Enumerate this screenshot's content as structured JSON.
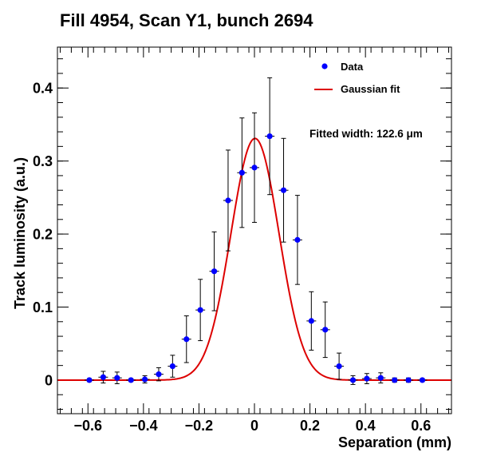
{
  "chart_data": {
    "type": "scatter",
    "title": "Fill 4954, Scan Y1, bunch 2694",
    "xlabel": "Separation (mm)",
    "ylabel": "Track luminosity (a.u.)",
    "xlim": [
      -0.71,
      0.71
    ],
    "ylim": [
      -0.046,
      0.456
    ],
    "x_ticks": [
      -0.6,
      -0.4,
      -0.2,
      0,
      0.2,
      0.4,
      0.6
    ],
    "x_tick_labels": [
      "−0.6",
      "−0.4",
      "−0.2",
      "0",
      "0.2",
      "0.4",
      "0.6"
    ],
    "y_ticks": [
      0,
      0.1,
      0.2,
      0.3,
      0.4
    ],
    "y_tick_labels": [
      "0",
      "0.1",
      "0.2",
      "0.3",
      "0.4"
    ],
    "legend_position": "top-right",
    "legend": {
      "data_label": "Data",
      "fit_label": "Gaussian fit"
    },
    "annotation": "Fitted width: 122.6 μm",
    "colors": {
      "data": "#0000ff",
      "fit": "#dd0000",
      "error_bar": "#000000"
    },
    "series": [
      {
        "name": "Data",
        "kind": "points_with_errors",
        "points": [
          {
            "x": -0.595,
            "y": 0.0,
            "err": 0.002
          },
          {
            "x": -0.545,
            "y": 0.004,
            "err": 0.008
          },
          {
            "x": -0.495,
            "y": 0.003,
            "err": 0.008
          },
          {
            "x": -0.445,
            "y": 0.0,
            "err": 0.002
          },
          {
            "x": -0.395,
            "y": 0.001,
            "err": 0.005
          },
          {
            "x": -0.345,
            "y": 0.008,
            "err": 0.009
          },
          {
            "x": -0.295,
            "y": 0.019,
            "err": 0.015
          },
          {
            "x": -0.245,
            "y": 0.056,
            "err": 0.032
          },
          {
            "x": -0.195,
            "y": 0.096,
            "err": 0.042
          },
          {
            "x": -0.145,
            "y": 0.149,
            "err": 0.054
          },
          {
            "x": -0.095,
            "y": 0.246,
            "err": 0.069
          },
          {
            "x": -0.045,
            "y": 0.284,
            "err": 0.075
          },
          {
            "x": 0.0,
            "y": 0.291,
            "err": 0.075
          },
          {
            "x": 0.055,
            "y": 0.334,
            "err": 0.08
          },
          {
            "x": 0.105,
            "y": 0.26,
            "err": 0.071
          },
          {
            "x": 0.155,
            "y": 0.192,
            "err": 0.061
          },
          {
            "x": 0.205,
            "y": 0.081,
            "err": 0.04
          },
          {
            "x": 0.255,
            "y": 0.069,
            "err": 0.038
          },
          {
            "x": 0.305,
            "y": 0.019,
            "err": 0.018
          },
          {
            "x": 0.355,
            "y": 0.0,
            "err": 0.006
          },
          {
            "x": 0.405,
            "y": 0.002,
            "err": 0.007
          },
          {
            "x": 0.455,
            "y": 0.003,
            "err": 0.007
          },
          {
            "x": 0.505,
            "y": 0.0,
            "err": 0.003
          },
          {
            "x": 0.555,
            "y": 0.0,
            "err": 0.003
          },
          {
            "x": 0.605,
            "y": 0.0,
            "err": 0.002
          }
        ]
      },
      {
        "name": "Gaussian fit",
        "kind": "gaussian",
        "amplitude": 0.331,
        "mean": 0.002,
        "sigma": 0.0867,
        "x_range": [
          -0.71,
          0.71
        ]
      }
    ]
  }
}
